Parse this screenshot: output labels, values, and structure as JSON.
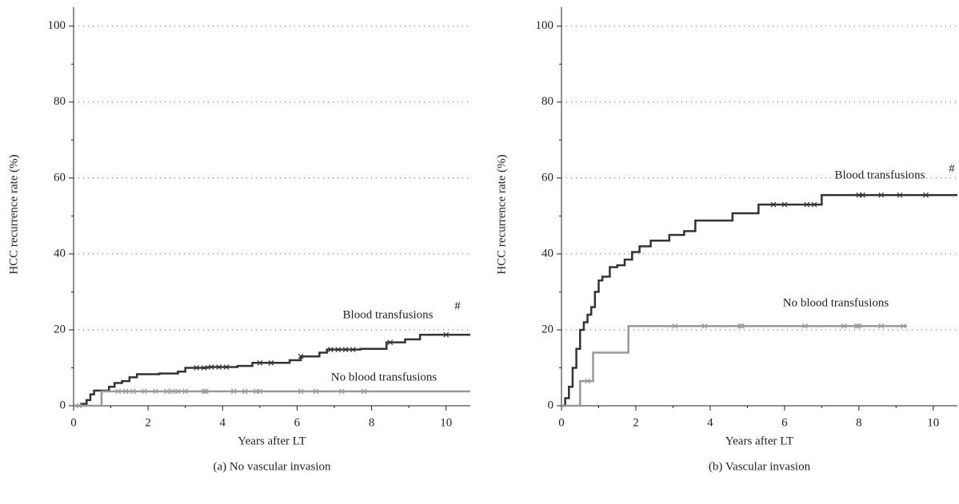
{
  "chart_data": [
    {
      "type": "line",
      "step": true,
      "caption": "(a) No vascular invasion",
      "xlabel": "Years after LT",
      "ylabel": "HCC recurrence rate (%)",
      "xlim": [
        0,
        10.65
      ],
      "ylim": [
        0,
        105
      ],
      "xticks": [
        0,
        2,
        4,
        6,
        8,
        10
      ],
      "yticks": [
        0,
        20,
        40,
        60,
        80,
        100
      ],
      "grid": true,
      "annotations": [
        "#"
      ],
      "series": [
        {
          "name": "Blood transfusions",
          "color": "#333333",
          "x": [
            0,
            0.2,
            0.35,
            0.45,
            0.55,
            0.8,
            0.95,
            1.1,
            1.3,
            1.5,
            1.7,
            2.3,
            2.8,
            3.0,
            3.6,
            4.4,
            4.8,
            5.8,
            6.1,
            6.6,
            6.8,
            7.7,
            8.4,
            8.9,
            9.3,
            10.65
          ],
          "values": [
            0,
            0.5,
            1.5,
            3,
            4,
            4,
            5,
            6,
            6.5,
            7.5,
            8.3,
            8.5,
            9,
            10,
            10.2,
            10.5,
            11.3,
            12,
            13,
            14,
            14.8,
            15,
            16.7,
            17.5,
            18.7,
            18.7
          ],
          "censored": [
            3.3,
            3.5,
            3.7,
            3.9,
            4.1,
            5.0,
            5.3,
            6.1,
            6.9,
            7.1,
            7.3,
            7.5,
            8.5,
            10.0
          ]
        },
        {
          "name": "No blood transfusions",
          "color": "#999999",
          "x": [
            0,
            0.75,
            10.65
          ],
          "values": [
            0,
            3.8,
            3.8
          ],
          "censored": [
            0.15,
            1.2,
            1.4,
            1.6,
            1.9,
            2.2,
            2.5,
            2.65,
            2.8,
            3.0,
            3.5,
            3.55,
            4.3,
            4.6,
            4.9,
            5.0,
            6.1,
            6.5,
            7.2,
            7.8
          ]
        }
      ]
    },
    {
      "type": "line",
      "step": true,
      "caption": "(b) Vascular invasion",
      "xlabel": "Years after LT",
      "ylabel": "HCC recurrence rate (%)",
      "xlim": [
        0,
        10.65
      ],
      "ylim": [
        0,
        105
      ],
      "xticks": [
        0,
        2,
        4,
        6,
        8,
        10
      ],
      "yticks": [
        0,
        20,
        40,
        60,
        80,
        100
      ],
      "grid": true,
      "annotations": [
        "#"
      ],
      "series": [
        {
          "name": "Blood transfusions",
          "color": "#333333",
          "x": [
            0,
            0.1,
            0.2,
            0.3,
            0.4,
            0.5,
            0.6,
            0.7,
            0.8,
            0.9,
            1.0,
            1.1,
            1.3,
            1.5,
            1.7,
            1.9,
            2.1,
            2.4,
            2.9,
            3.3,
            3.6,
            4.6,
            5.3,
            7.0,
            10.65
          ],
          "values": [
            0,
            2,
            5,
            10,
            15,
            20,
            22,
            24,
            26,
            30,
            33,
            34,
            36.5,
            37,
            38.5,
            40.5,
            42,
            43.5,
            45,
            46,
            48.8,
            50.7,
            53,
            55.5,
            55.5
          ],
          "censored": [
            5.7,
            6.0,
            6.6,
            6.8,
            8.0,
            8.1,
            8.6,
            9.1,
            9.8
          ]
        },
        {
          "name": "No blood transfusions",
          "color": "#999999",
          "x": [
            0,
            0.5,
            0.85,
            1.8,
            9.3
          ],
          "values": [
            0,
            6.5,
            14,
            21,
            21
          ],
          "censored": [
            0.7,
            3.05,
            3.85,
            4.8,
            4.85,
            6.55,
            7.6,
            7.95,
            8.0,
            8.6,
            9.2
          ]
        }
      ]
    }
  ]
}
